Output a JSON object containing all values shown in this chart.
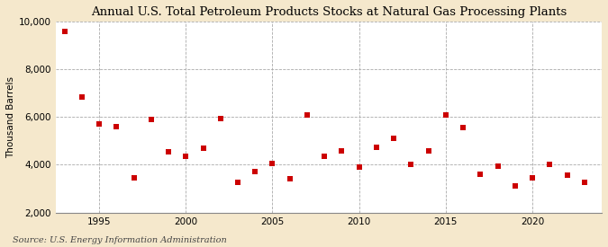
{
  "title": "Annual U.S. Total Petroleum Products Stocks at Natural Gas Processing Plants",
  "ylabel": "Thousand Barrels",
  "source": "Source: U.S. Energy Information Administration",
  "background_color": "#f5e8cc",
  "plot_bg_color": "#ffffff",
  "marker_color": "#cc0000",
  "marker": "s",
  "marker_size": 4,
  "xlim": [
    1992.5,
    2024
  ],
  "ylim": [
    2000,
    10000
  ],
  "yticks": [
    2000,
    4000,
    6000,
    8000,
    10000
  ],
  "xticks": [
    1995,
    2000,
    2005,
    2010,
    2015,
    2020
  ],
  "years": [
    1993,
    1994,
    1995,
    1996,
    1997,
    1998,
    1999,
    2000,
    2001,
    2002,
    2003,
    2004,
    2005,
    2006,
    2007,
    2008,
    2009,
    2010,
    2011,
    2012,
    2013,
    2014,
    2015,
    2016,
    2017,
    2018,
    2019,
    2020,
    2021,
    2022,
    2023
  ],
  "values": [
    9600,
    6850,
    5700,
    5600,
    3450,
    5900,
    4550,
    4350,
    4700,
    5950,
    3250,
    3700,
    4050,
    3400,
    6100,
    4350,
    4600,
    3900,
    4750,
    5100,
    4000,
    4600,
    6100,
    5550,
    3600,
    3950,
    3100,
    3450,
    4000,
    3550,
    3250
  ]
}
